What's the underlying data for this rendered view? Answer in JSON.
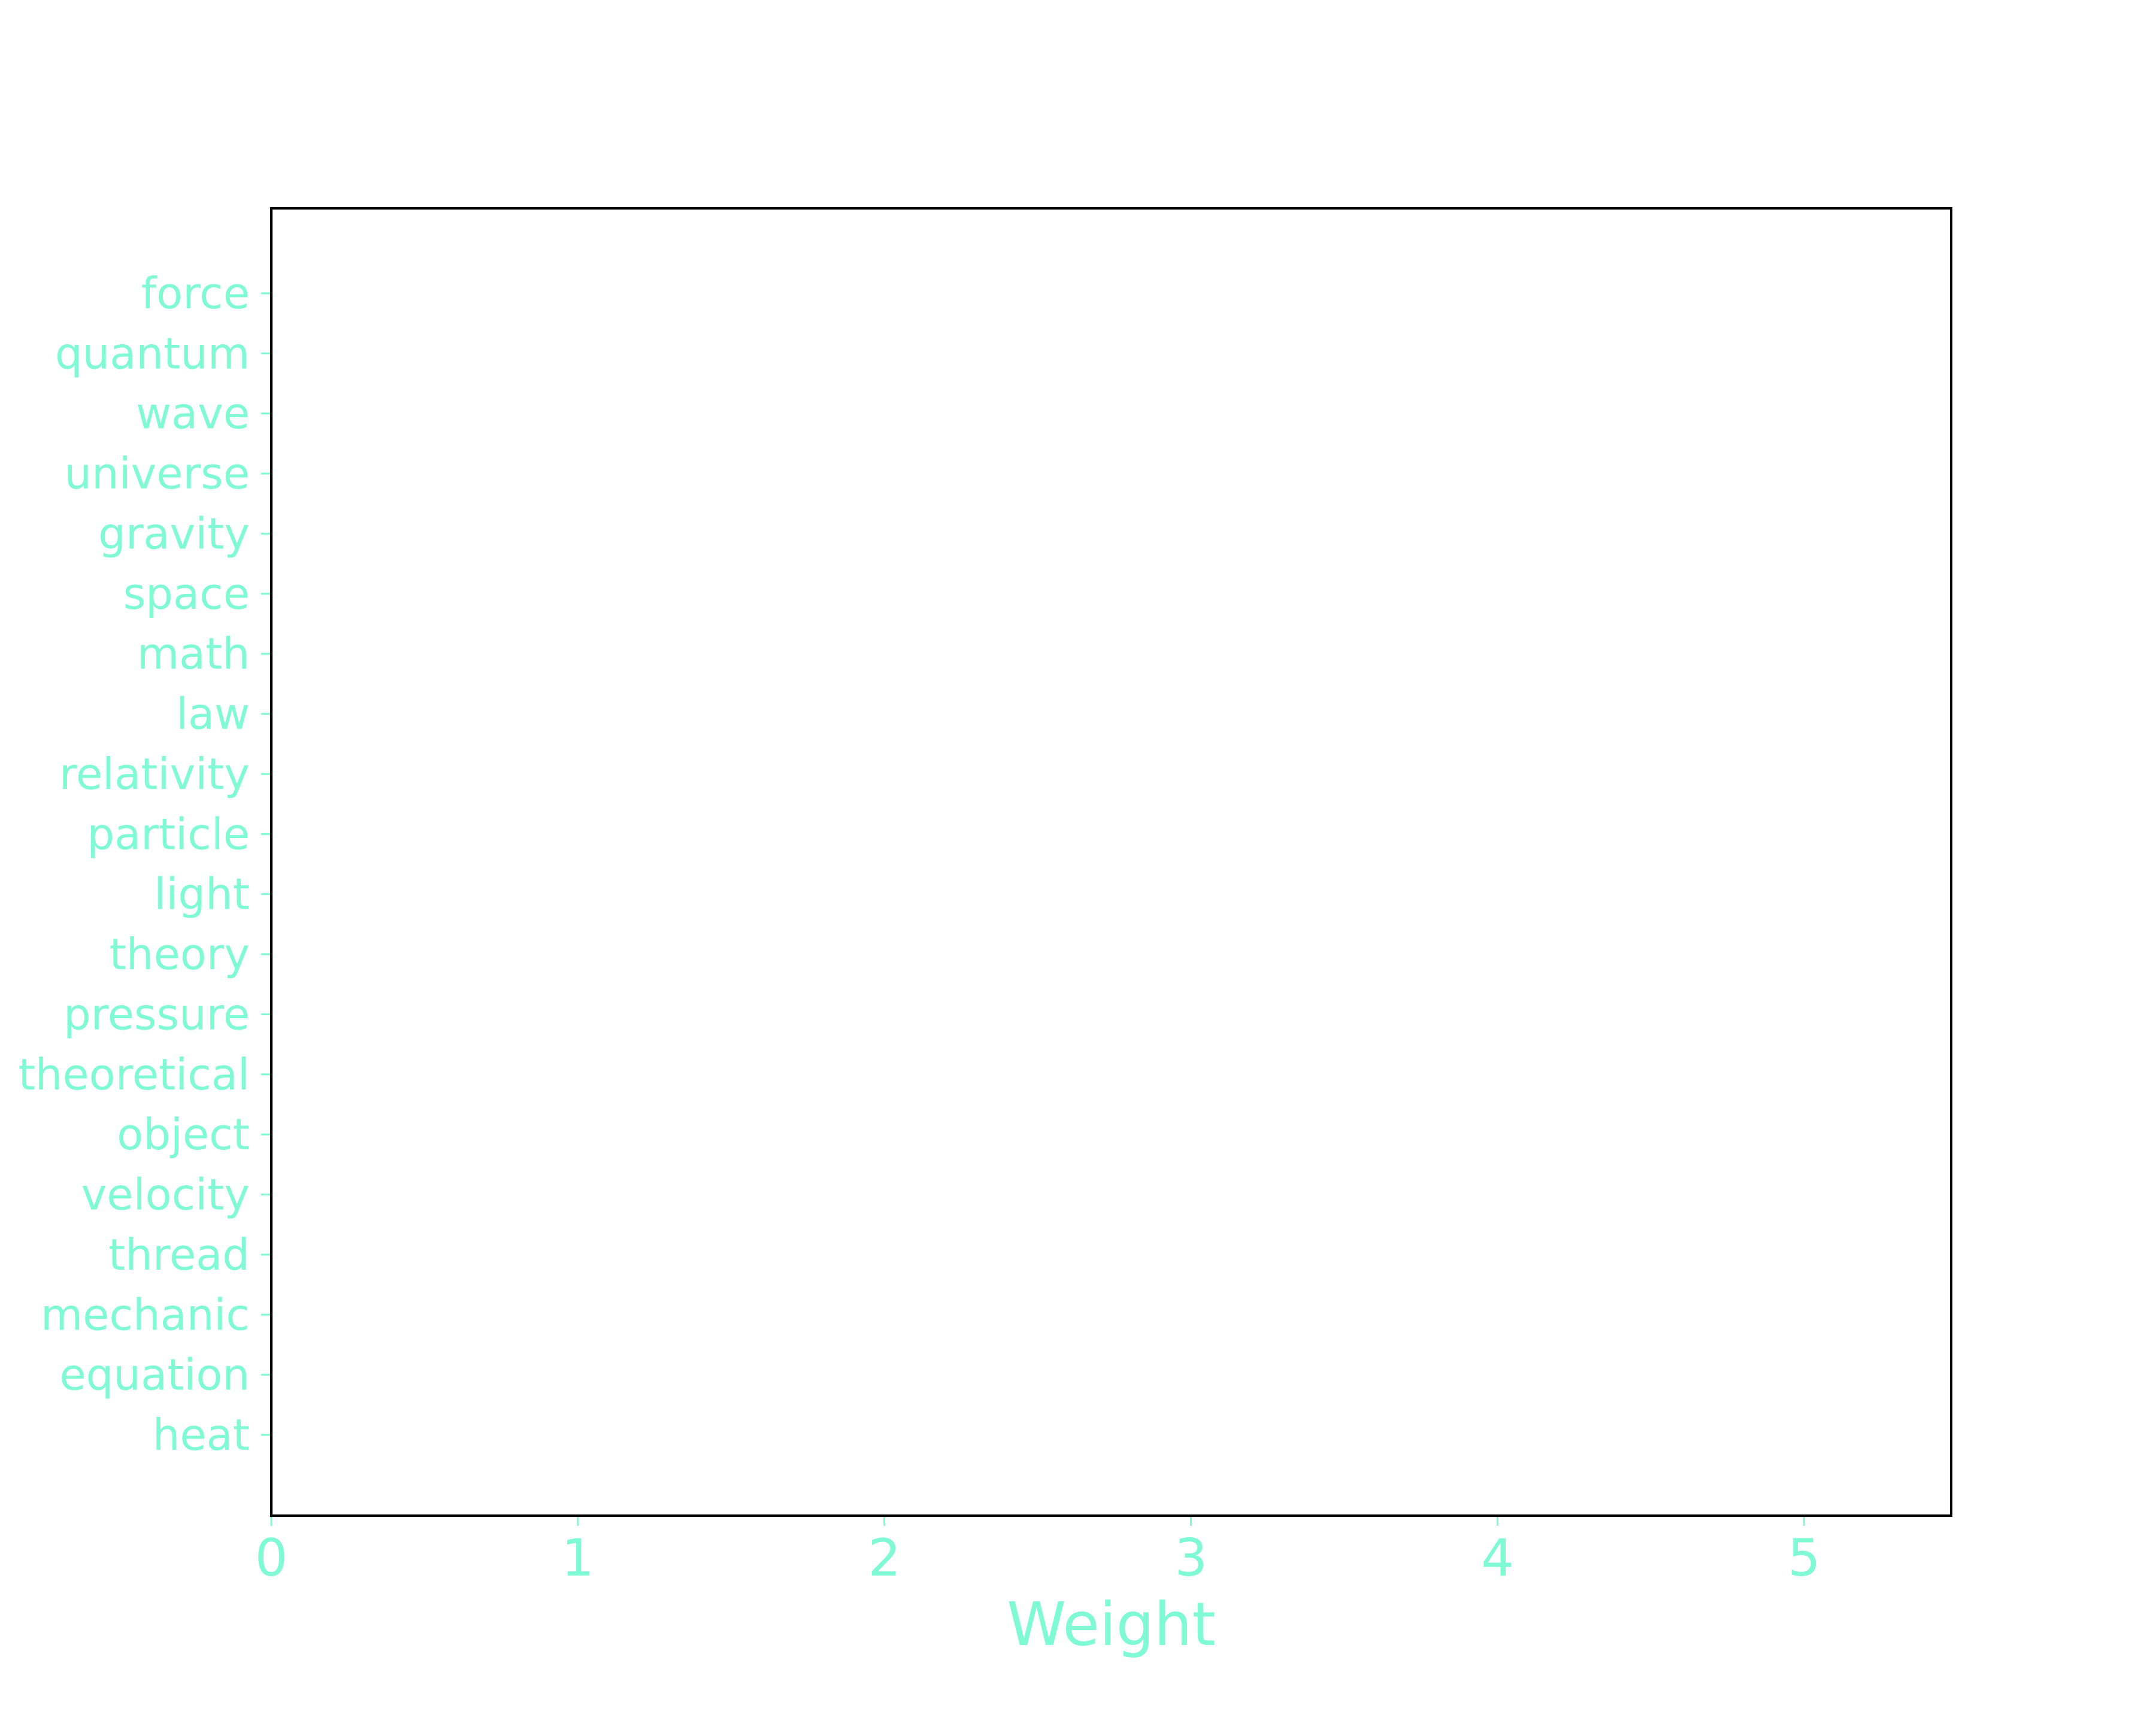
{
  "chart_data": {
    "type": "bar",
    "orientation": "horizontal",
    "title": "",
    "xlabel": "Weight",
    "ylabel": "",
    "categories": [
      "force",
      "quantum",
      "wave",
      "universe",
      "gravity",
      "space",
      "math",
      "law",
      "relativity",
      "particle",
      "light",
      "theory",
      "pressure",
      "theoretical",
      "object",
      "velocity",
      "thread",
      "mechanic",
      "equation",
      "heat"
    ],
    "values": [
      0,
      0,
      0,
      0,
      0,
      0,
      0,
      0,
      0,
      0,
      0,
      0,
      0,
      0,
      0,
      0,
      0,
      0,
      0,
      0
    ],
    "x_ticks": [
      "0",
      "1",
      "2",
      "3",
      "4",
      "5"
    ],
    "xlim": [
      0,
      5.48
    ],
    "grid": false,
    "legend": "none",
    "colors": {
      "text": "#7ffad2",
      "frame": "#000000",
      "bar": "#7ffad2",
      "background": "#ffffff"
    }
  }
}
